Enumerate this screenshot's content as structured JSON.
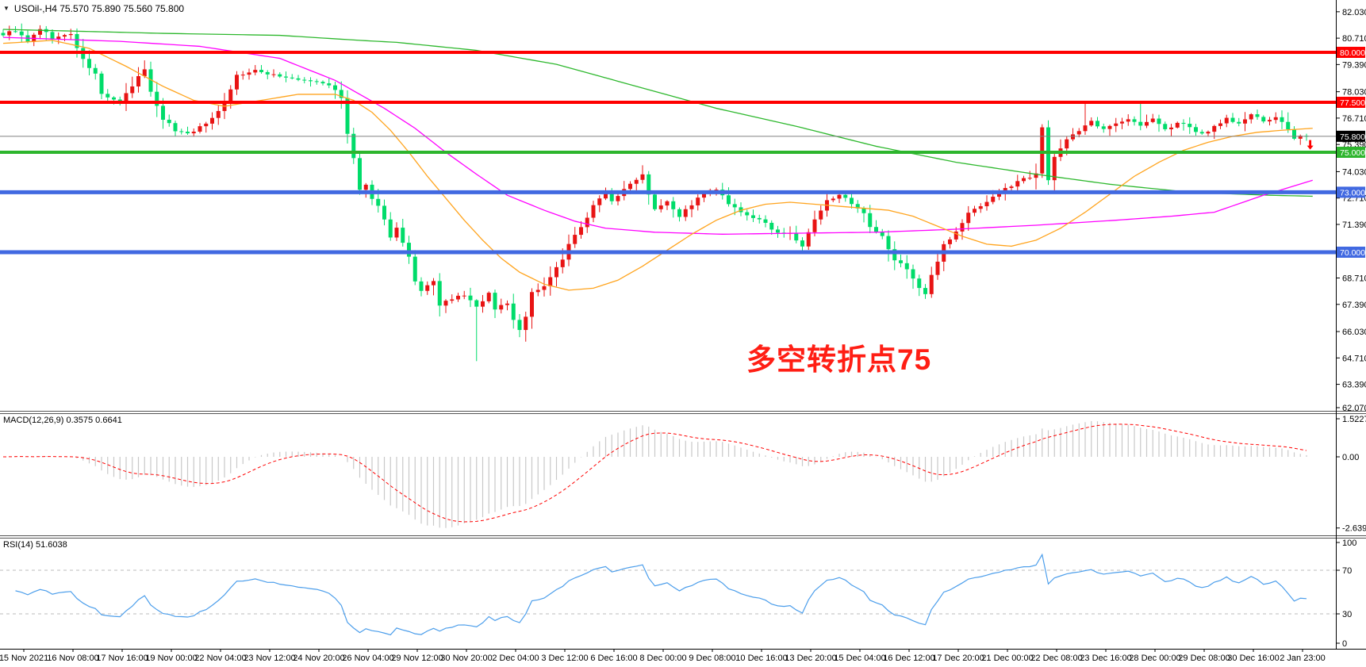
{
  "header": {
    "title": "USOil-,H4  75.570 75.890 75.560 75.800",
    "symbol": "USOil-",
    "timeframe": "H4",
    "open": "75.570",
    "high": "75.890",
    "low": "75.560",
    "close": "75.800"
  },
  "icons": {
    "symbol_dropdown": "▼"
  },
  "annotation": {
    "text": "多空转折点75",
    "color": "#FF1E14"
  },
  "chart_data": {
    "type": "candlestick",
    "title": "USOil-,H4",
    "ylim": [
      62.07,
      82.6
    ],
    "grid": false,
    "y_axis_ticks": [
      "82.030",
      "80.710",
      "79.390",
      "78.030",
      "76.710",
      "75.390",
      "74.030",
      "72.710",
      "71.390",
      "68.710",
      "67.390",
      "66.030",
      "64.710",
      "63.390",
      "62.070"
    ],
    "x_axis_labels": [
      "15 Nov 2021",
      "16 Nov 08:00",
      "17 Nov 16:00",
      "19 Nov 00:00",
      "22 Nov 04:00",
      "23 Nov 12:00",
      "24 Nov 20:00",
      "26 Nov 04:00",
      "29 Nov 12:00",
      "30 Nov 20:00",
      "2 Dec 04:00",
      "3 Dec 12:00",
      "6 Dec 16:00",
      "8 Dec 00:00",
      "9 Dec 08:00",
      "10 Dec 16:00",
      "13 Dec 20:00",
      "15 Dec 04:00",
      "16 Dec 12:00",
      "17 Dec 20:00",
      "21 Dec 00:00",
      "22 Dec 08:00",
      "23 Dec 16:00",
      "28 Dec 00:00",
      "29 Dec 08:00",
      "30 Dec 16:00",
      "2 Jan 23:00"
    ],
    "hlines": [
      {
        "label": "80.000",
        "price": 80.0,
        "color": "#FF0000",
        "width": 4
      },
      {
        "label": "77.500",
        "price": 77.5,
        "color": "#FF0000",
        "width": 4
      },
      {
        "label": "75.000",
        "price": 75.0,
        "color": "#2DB52D",
        "width": 4
      },
      {
        "label": "73.000",
        "price": 73.0,
        "color": "#4169E1",
        "width": 5
      },
      {
        "label": "70.000",
        "price": 70.0,
        "color": "#4169E1",
        "width": 5
      }
    ],
    "price_marker": {
      "label": "75.800",
      "price": 75.8,
      "box_color": "#000000",
      "line_color": "#808080",
      "text_color": "#FFFFFF"
    },
    "candles": {
      "count": 213,
      "up_color": "#E81414",
      "down_color": "#00DC6A",
      "close_waypoints": [
        [
          0,
          80.9
        ],
        [
          2,
          81.1
        ],
        [
          4,
          80.5
        ],
        [
          6,
          81.2
        ],
        [
          8,
          80.7
        ],
        [
          11,
          80.9
        ],
        [
          13,
          79.6
        ],
        [
          15,
          78.9
        ],
        [
          16,
          77.9
        ],
        [
          19,
          77.5
        ],
        [
          21,
          78.3
        ],
        [
          23,
          79.2
        ],
        [
          24,
          78.0
        ],
        [
          26,
          76.7
        ],
        [
          28,
          76.1
        ],
        [
          30,
          75.95
        ],
        [
          33,
          76.4
        ],
        [
          36,
          77.5
        ],
        [
          38,
          78.85
        ],
        [
          41,
          79.05
        ],
        [
          44,
          78.9
        ],
        [
          47,
          78.65
        ],
        [
          50,
          78.55
        ],
        [
          53,
          78.4
        ],
        [
          55,
          77.7
        ],
        [
          56,
          75.9
        ],
        [
          57,
          74.7
        ],
        [
          58,
          73.1
        ],
        [
          59,
          73.3
        ],
        [
          60,
          72.6
        ],
        [
          61,
          72.4
        ],
        [
          62,
          71.6
        ],
        [
          63,
          70.8
        ],
        [
          64,
          71.2
        ],
        [
          66,
          69.7
        ],
        [
          67,
          68.5
        ],
        [
          68,
          68.0
        ],
        [
          70,
          68.6
        ],
        [
          71,
          67.3
        ],
        [
          73,
          67.7
        ],
        [
          75,
          67.8
        ],
        [
          77,
          67.3
        ],
        [
          78,
          67.5
        ],
        [
          79,
          68.0
        ],
        [
          80,
          67.1
        ],
        [
          82,
          67.5
        ],
        [
          83,
          66.6
        ],
        [
          84,
          66.1
        ],
        [
          85,
          66.8
        ],
        [
          86,
          68.0
        ],
        [
          88,
          68.3
        ],
        [
          89,
          68.8
        ],
        [
          91,
          69.6
        ],
        [
          92,
          70.4
        ],
        [
          94,
          71.2
        ],
        [
          96,
          72.4
        ],
        [
          98,
          72.95
        ],
        [
          99,
          72.6
        ],
        [
          101,
          73.1
        ],
        [
          103,
          73.7
        ],
        [
          104,
          73.9
        ],
        [
          105,
          72.95
        ],
        [
          106,
          72.2
        ],
        [
          108,
          72.6
        ],
        [
          110,
          71.8
        ],
        [
          112,
          72.4
        ],
        [
          114,
          72.95
        ],
        [
          116,
          73.15
        ],
        [
          118,
          72.4
        ],
        [
          120,
          71.95
        ],
        [
          122,
          71.75
        ],
        [
          124,
          71.4
        ],
        [
          126,
          71.0
        ],
        [
          128,
          70.9
        ],
        [
          130,
          70.3
        ],
        [
          132,
          71.6
        ],
        [
          134,
          72.55
        ],
        [
          136,
          72.95
        ],
        [
          138,
          72.35
        ],
        [
          140,
          71.9
        ],
        [
          141,
          71.2
        ],
        [
          143,
          70.75
        ],
        [
          145,
          69.6
        ],
        [
          147,
          69.2
        ],
        [
          149,
          68.2
        ],
        [
          150,
          67.9
        ],
        [
          151,
          68.8
        ],
        [
          153,
          70.4
        ],
        [
          155,
          71.0
        ],
        [
          157,
          71.95
        ],
        [
          159,
          72.35
        ],
        [
          161,
          72.75
        ],
        [
          163,
          73.15
        ],
        [
          165,
          73.55
        ],
        [
          167,
          73.8
        ],
        [
          168,
          74.0
        ],
        [
          169,
          76.3
        ],
        [
          170,
          73.6
        ],
        [
          171,
          74.7
        ],
        [
          173,
          75.7
        ],
        [
          175,
          76.1
        ],
        [
          177,
          76.5
        ],
        [
          179,
          76.1
        ],
        [
          181,
          76.5
        ],
        [
          183,
          76.7
        ],
        [
          185,
          76.3
        ],
        [
          187,
          76.7
        ],
        [
          189,
          76.1
        ],
        [
          191,
          76.5
        ],
        [
          193,
          76.2
        ],
        [
          195,
          75.9
        ],
        [
          197,
          76.3
        ],
        [
          199,
          76.7
        ],
        [
          201,
          76.4
        ],
        [
          203,
          76.9
        ],
        [
          205,
          76.5
        ],
        [
          207,
          76.8
        ],
        [
          209,
          76.1
        ],
        [
          210,
          75.6
        ],
        [
          211,
          75.9
        ],
        [
          212,
          75.8
        ]
      ],
      "wick_overrides": [
        {
          "bar": 23,
          "high": 79.6
        },
        {
          "bar": 77,
          "low": 64.55
        },
        {
          "bar": 84,
          "low": 65.75
        },
        {
          "bar": 176,
          "high": 77.5
        },
        {
          "bar": 185,
          "high": 77.45
        }
      ]
    },
    "ma": [
      {
        "name": "slow-ma-line",
        "color": "#2EB82E",
        "waypoints": [
          [
            0,
            81.15
          ],
          [
            26,
            80.95
          ],
          [
            45,
            80.85
          ],
          [
            58,
            80.6
          ],
          [
            64,
            80.5
          ],
          [
            77,
            80.1
          ],
          [
            90,
            79.4
          ],
          [
            103,
            78.3
          ],
          [
            116,
            77.2
          ],
          [
            129,
            76.3
          ],
          [
            142,
            75.3
          ],
          [
            155,
            74.5
          ],
          [
            168,
            73.9
          ],
          [
            180,
            73.4
          ],
          [
            193,
            73.0
          ],
          [
            206,
            72.85
          ],
          [
            213,
            72.8
          ]
        ]
      },
      {
        "name": "mid-ma-line",
        "color": "#FF00FF",
        "waypoints": [
          [
            0,
            80.75
          ],
          [
            19,
            80.55
          ],
          [
            32,
            80.3
          ],
          [
            45,
            79.7
          ],
          [
            54,
            78.6
          ],
          [
            62,
            77.2
          ],
          [
            67,
            76.2
          ],
          [
            72,
            75.0
          ],
          [
            77,
            73.9
          ],
          [
            82,
            72.85
          ],
          [
            88,
            72.1
          ],
          [
            93,
            71.55
          ],
          [
            98,
            71.2
          ],
          [
            106,
            71.0
          ],
          [
            117,
            70.9
          ],
          [
            129,
            70.95
          ],
          [
            142,
            71.0
          ],
          [
            155,
            71.15
          ],
          [
            168,
            71.35
          ],
          [
            181,
            71.6
          ],
          [
            190,
            71.8
          ],
          [
            197,
            72.0
          ],
          [
            205,
            72.85
          ],
          [
            213,
            73.6
          ]
        ]
      },
      {
        "name": "fast-ma-line",
        "color": "#FFA41E",
        "waypoints": [
          [
            0,
            80.45
          ],
          [
            8,
            80.6
          ],
          [
            14,
            80.2
          ],
          [
            20,
            79.3
          ],
          [
            26,
            78.3
          ],
          [
            31,
            77.6
          ],
          [
            36,
            77.3
          ],
          [
            42,
            77.6
          ],
          [
            48,
            77.9
          ],
          [
            54,
            77.9
          ],
          [
            57,
            77.6
          ],
          [
            60,
            77.0
          ],
          [
            63,
            76.1
          ],
          [
            66,
            75.0
          ],
          [
            69,
            73.8
          ],
          [
            72,
            72.7
          ],
          [
            75,
            71.6
          ],
          [
            78,
            70.6
          ],
          [
            81,
            69.7
          ],
          [
            84,
            69.0
          ],
          [
            88,
            68.4
          ],
          [
            92,
            68.1
          ],
          [
            96,
            68.2
          ],
          [
            100,
            68.6
          ],
          [
            104,
            69.3
          ],
          [
            108,
            70.1
          ],
          [
            112,
            70.9
          ],
          [
            116,
            71.6
          ],
          [
            120,
            72.1
          ],
          [
            124,
            72.4
          ],
          [
            128,
            72.5
          ],
          [
            132,
            72.4
          ],
          [
            136,
            72.3
          ],
          [
            140,
            72.2
          ],
          [
            144,
            72.1
          ],
          [
            148,
            71.8
          ],
          [
            152,
            71.3
          ],
          [
            156,
            70.8
          ],
          [
            160,
            70.4
          ],
          [
            164,
            70.3
          ],
          [
            168,
            70.6
          ],
          [
            172,
            71.2
          ],
          [
            176,
            72.0
          ],
          [
            180,
            72.9
          ],
          [
            184,
            73.8
          ],
          [
            188,
            74.5
          ],
          [
            192,
            75.1
          ],
          [
            196,
            75.5
          ],
          [
            200,
            75.8
          ],
          [
            204,
            76.0
          ],
          [
            208,
            76.1
          ],
          [
            213,
            76.2
          ]
        ]
      }
    ],
    "macd": {
      "label": "MACD(12,26,9) 0.3575 0.6641",
      "fast": 12,
      "slow": 26,
      "signal": 9,
      "current_macd": 0.3575,
      "current_signal": 0.6641,
      "axis_max_label": "1.5227",
      "axis_zero_label": "0.00",
      "axis_min_label": "-2.6392",
      "axis_max": 1.5227,
      "axis_min": -2.6392,
      "hist_color": "#C8C8C8",
      "signal_color": "#FF0000"
    },
    "rsi": {
      "label": "RSI(14) 51.6038",
      "period": 14,
      "current": 51.6038,
      "axis_labels": [
        "100",
        "70",
        "30",
        "0"
      ],
      "axis_values": [
        100,
        70,
        30,
        0
      ],
      "dashed_levels": [
        70,
        30
      ],
      "line_color": "#4C9EEB",
      "level_color": "#BBBBBB"
    },
    "marker": {
      "shape": "arrow-down",
      "color": "#FF0000",
      "bar": 212.6,
      "price": 75.33
    }
  }
}
